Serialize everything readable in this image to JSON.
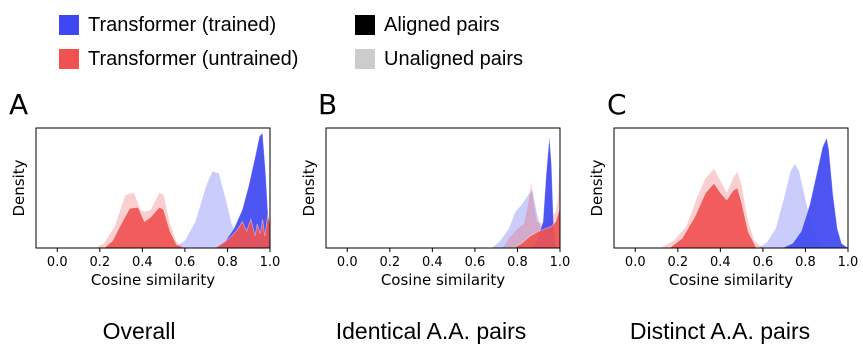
{
  "legend": {
    "items": [
      {
        "label": "Transformer (trained)",
        "color": "#3f48f0"
      },
      {
        "label": "Transformer (untrained)",
        "color": "#f05252"
      },
      {
        "label": "Aligned pairs",
        "color": "#000000"
      },
      {
        "label": "Unaligned pairs",
        "color": "#cccccc"
      }
    ]
  },
  "chart_data": [
    {
      "type": "area",
      "panel_letter": "A",
      "caption": "Overall",
      "xlabel": "Cosine similarity",
      "ylabel": "Density",
      "xlim": [
        -0.1,
        1.0
      ],
      "xticks": [
        "0.0",
        "0.2",
        "0.4",
        "0.6",
        "0.8",
        "1.0"
      ],
      "grid": false,
      "series": [
        {
          "model": "untrained",
          "pairs": "unaligned",
          "points": [
            [
              0.18,
              0
            ],
            [
              0.22,
              0.04
            ],
            [
              0.27,
              0.18
            ],
            [
              0.32,
              0.44
            ],
            [
              0.36,
              0.46
            ],
            [
              0.39,
              0.32
            ],
            [
              0.41,
              0.3
            ],
            [
              0.44,
              0.32
            ],
            [
              0.48,
              0.46
            ],
            [
              0.5,
              0.44
            ],
            [
              0.53,
              0.2
            ],
            [
              0.56,
              0.05
            ],
            [
              0.6,
              0
            ]
          ]
        },
        {
          "model": "untrained",
          "pairs": "aligned",
          "points": [
            [
              0.22,
              0
            ],
            [
              0.26,
              0.06
            ],
            [
              0.3,
              0.2
            ],
            [
              0.34,
              0.33
            ],
            [
              0.38,
              0.34
            ],
            [
              0.41,
              0.22
            ],
            [
              0.44,
              0.26
            ],
            [
              0.48,
              0.34
            ],
            [
              0.5,
              0.32
            ],
            [
              0.53,
              0.14
            ],
            [
              0.56,
              0.03
            ],
            [
              0.6,
              0
            ]
          ]
        },
        {
          "model": "trained",
          "pairs": "unaligned",
          "points": [
            [
              0.55,
              0
            ],
            [
              0.6,
              0.06
            ],
            [
              0.65,
              0.22
            ],
            [
              0.7,
              0.52
            ],
            [
              0.73,
              0.64
            ],
            [
              0.76,
              0.62
            ],
            [
              0.79,
              0.42
            ],
            [
              0.82,
              0.2
            ],
            [
              0.86,
              0.06
            ],
            [
              0.9,
              0
            ]
          ]
        },
        {
          "model": "trained",
          "pairs": "aligned",
          "points": [
            [
              0.74,
              0
            ],
            [
              0.79,
              0.06
            ],
            [
              0.83,
              0.16
            ],
            [
              0.87,
              0.32
            ],
            [
              0.9,
              0.52
            ],
            [
              0.93,
              0.76
            ],
            [
              0.95,
              0.93
            ],
            [
              0.965,
              0.96
            ],
            [
              0.98,
              0.62
            ],
            [
              0.99,
              0.3
            ],
            [
              1.0,
              0.1
            ]
          ]
        },
        {
          "model": "untrained",
          "pairs": "aligned",
          "points": [
            [
              0.74,
              0
            ],
            [
              0.78,
              0.04
            ],
            [
              0.82,
              0.1
            ],
            [
              0.85,
              0.16
            ],
            [
              0.87,
              0.22
            ],
            [
              0.89,
              0.14
            ],
            [
              0.91,
              0.24
            ],
            [
              0.93,
              0.1
            ],
            [
              0.94,
              0.2
            ],
            [
              0.955,
              0.12
            ],
            [
              0.965,
              0.24
            ],
            [
              0.975,
              0.1
            ],
            [
              0.99,
              0.28
            ],
            [
              1.0,
              0.2
            ]
          ]
        }
      ]
    },
    {
      "type": "area",
      "panel_letter": "B",
      "caption": "Identical A.A. pairs",
      "xlabel": "Cosine similarity",
      "ylabel": "Density",
      "xlim": [
        -0.1,
        1.0
      ],
      "xticks": [
        "0.0",
        "0.2",
        "0.4",
        "0.6",
        "0.8",
        "1.0"
      ],
      "grid": false,
      "series": [
        {
          "model": "trained",
          "pairs": "unaligned",
          "points": [
            [
              0.68,
              0
            ],
            [
              0.72,
              0.06
            ],
            [
              0.76,
              0.16
            ],
            [
              0.79,
              0.3
            ],
            [
              0.82,
              0.36
            ],
            [
              0.85,
              0.44
            ],
            [
              0.87,
              0.48
            ],
            [
              0.89,
              0.3
            ],
            [
              0.92,
              0.1
            ],
            [
              0.96,
              0
            ]
          ]
        },
        {
          "model": "trained",
          "pairs": "aligned",
          "points": [
            [
              0.86,
              0
            ],
            [
              0.89,
              0.06
            ],
            [
              0.92,
              0.22
            ],
            [
              0.935,
              0.62
            ],
            [
              0.95,
              0.93
            ],
            [
              0.96,
              0.7
            ],
            [
              0.97,
              0.2
            ],
            [
              0.98,
              0.02
            ],
            [
              0.99,
              0
            ]
          ]
        },
        {
          "model": "untrained",
          "pairs": "unaligned",
          "points": [
            [
              0.73,
              0
            ],
            [
              0.76,
              0.08
            ],
            [
              0.8,
              0.16
            ],
            [
              0.83,
              0.2
            ],
            [
              0.85,
              0.36
            ],
            [
              0.865,
              0.55
            ],
            [
              0.875,
              0.4
            ],
            [
              0.89,
              0.22
            ],
            [
              0.92,
              0.2
            ],
            [
              0.95,
              0.24
            ],
            [
              0.98,
              0.3
            ],
            [
              0.99,
              0.4
            ],
            [
              1.0,
              0.78
            ]
          ]
        },
        {
          "model": "untrained",
          "pairs": "aligned",
          "points": [
            [
              0.78,
              0
            ],
            [
              0.82,
              0.04
            ],
            [
              0.86,
              0.1
            ],
            [
              0.9,
              0.14
            ],
            [
              0.93,
              0.16
            ],
            [
              0.96,
              0.18
            ],
            [
              0.98,
              0.22
            ],
            [
              1.0,
              0.34
            ]
          ]
        }
      ]
    },
    {
      "type": "area",
      "panel_letter": "C",
      "caption": "Distinct A.A. pairs",
      "xlabel": "Cosine similarity",
      "ylabel": "Density",
      "xlim": [
        -0.1,
        1.0
      ],
      "xticks": [
        "0.0",
        "0.2",
        "0.4",
        "0.6",
        "0.8",
        "1.0"
      ],
      "grid": false,
      "series": [
        {
          "model": "trained",
          "pairs": "unaligned",
          "points": [
            [
              0.58,
              0
            ],
            [
              0.62,
              0.05
            ],
            [
              0.66,
              0.16
            ],
            [
              0.7,
              0.42
            ],
            [
              0.73,
              0.64
            ],
            [
              0.75,
              0.7
            ],
            [
              0.77,
              0.64
            ],
            [
              0.8,
              0.4
            ],
            [
              0.83,
              0.18
            ],
            [
              0.86,
              0.05
            ],
            [
              0.9,
              0
            ]
          ]
        },
        {
          "model": "trained",
          "pairs": "aligned",
          "points": [
            [
              0.69,
              0
            ],
            [
              0.74,
              0.04
            ],
            [
              0.78,
              0.14
            ],
            [
              0.82,
              0.36
            ],
            [
              0.85,
              0.6
            ],
            [
              0.88,
              0.84
            ],
            [
              0.9,
              0.92
            ],
            [
              0.91,
              0.82
            ],
            [
              0.93,
              0.44
            ],
            [
              0.95,
              0.16
            ],
            [
              0.97,
              0.04
            ],
            [
              1.0,
              0
            ]
          ]
        },
        {
          "model": "untrained",
          "pairs": "unaligned",
          "points": [
            [
              0.12,
              0
            ],
            [
              0.18,
              0.06
            ],
            [
              0.24,
              0.18
            ],
            [
              0.29,
              0.42
            ],
            [
              0.33,
              0.58
            ],
            [
              0.37,
              0.66
            ],
            [
              0.4,
              0.56
            ],
            [
              0.43,
              0.46
            ],
            [
              0.46,
              0.58
            ],
            [
              0.48,
              0.64
            ],
            [
              0.5,
              0.52
            ],
            [
              0.53,
              0.22
            ],
            [
              0.56,
              0.06
            ],
            [
              0.6,
              0
            ]
          ]
        },
        {
          "model": "untrained",
          "pairs": "aligned",
          "points": [
            [
              0.16,
              0
            ],
            [
              0.22,
              0.08
            ],
            [
              0.28,
              0.26
            ],
            [
              0.33,
              0.46
            ],
            [
              0.37,
              0.54
            ],
            [
              0.4,
              0.46
            ],
            [
              0.43,
              0.4
            ],
            [
              0.46,
              0.48
            ],
            [
              0.48,
              0.5
            ],
            [
              0.5,
              0.38
            ],
            [
              0.53,
              0.14
            ],
            [
              0.57,
              0
            ]
          ]
        }
      ]
    }
  ]
}
